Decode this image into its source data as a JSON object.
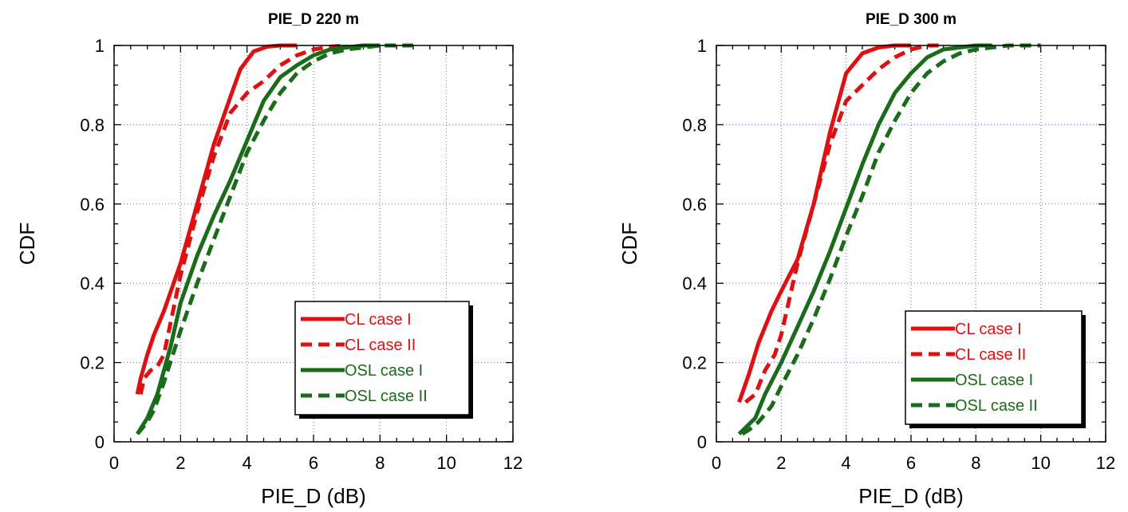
{
  "colors": {
    "red": "#dd1111",
    "green": "#1a6b1a",
    "grid": "#6666cc"
  },
  "chart_data": [
    {
      "type": "line",
      "title": "PIE_D 220 m",
      "xlabel": "PIE_D (dB)",
      "ylabel": "CDF",
      "xlim": [
        0,
        12
      ],
      "ylim": [
        0,
        1
      ],
      "xticks": [
        "0",
        "2",
        "4",
        "6",
        "8",
        "10",
        "12"
      ],
      "yticks": [
        "0",
        "0.2",
        "0.4",
        "0.6",
        "0.8",
        "1"
      ],
      "grid": true,
      "legend_position": "lower-right",
      "series": [
        {
          "name": "CL case I",
          "color": "#dd1111",
          "dash": "solid",
          "x": [
            0.7,
            0.8,
            1.0,
            1.2,
            1.5,
            2.0,
            2.5,
            3.0,
            3.5,
            3.8,
            4.2,
            4.6,
            5.0,
            5.5
          ],
          "y": [
            0.12,
            0.16,
            0.22,
            0.27,
            0.33,
            0.45,
            0.6,
            0.75,
            0.87,
            0.94,
            0.985,
            0.997,
            1.0,
            1.0
          ]
        },
        {
          "name": "CL case II",
          "color": "#dd1111",
          "dash": "dashed",
          "x": [
            0.8,
            0.9,
            1.1,
            1.3,
            1.5,
            1.7,
            2.0,
            2.5,
            3.0,
            3.5,
            4.0,
            4.5,
            5.0,
            5.5,
            6.0,
            6.5,
            7.0
          ],
          "y": [
            0.12,
            0.16,
            0.18,
            0.19,
            0.22,
            0.3,
            0.42,
            0.58,
            0.72,
            0.83,
            0.88,
            0.91,
            0.95,
            0.975,
            0.99,
            0.997,
            1.0
          ]
        },
        {
          "name": "OSL case I",
          "color": "#1a6b1a",
          "dash": "solid",
          "x": [
            0.7,
            1.0,
            1.3,
            1.7,
            2.0,
            2.5,
            3.0,
            3.5,
            4.0,
            4.5,
            5.0,
            5.5,
            6.0,
            6.5,
            7.0,
            7.5,
            8.0
          ],
          "y": [
            0.02,
            0.06,
            0.12,
            0.24,
            0.35,
            0.47,
            0.57,
            0.66,
            0.76,
            0.86,
            0.92,
            0.95,
            0.975,
            0.99,
            0.995,
            1.0,
            1.0
          ]
        },
        {
          "name": "OSL case II",
          "color": "#1a6b1a",
          "dash": "dashed",
          "x": [
            0.7,
            1.0,
            1.2,
            1.5,
            2.0,
            2.5,
            3.0,
            3.5,
            4.0,
            4.5,
            5.0,
            5.5,
            6.0,
            6.5,
            7.0,
            7.5,
            8.0,
            9.0
          ],
          "y": [
            0.02,
            0.05,
            0.08,
            0.15,
            0.28,
            0.4,
            0.51,
            0.62,
            0.73,
            0.81,
            0.88,
            0.93,
            0.96,
            0.98,
            0.99,
            0.995,
            1.0,
            1.0
          ]
        }
      ]
    },
    {
      "type": "line",
      "title": "PIE_D 300 m",
      "xlabel": "PIE_D (dB)",
      "ylabel": "CDF",
      "xlim": [
        0,
        12
      ],
      "ylim": [
        0,
        1
      ],
      "xticks": [
        "0",
        "2",
        "4",
        "6",
        "8",
        "10",
        "12"
      ],
      "yticks": [
        "0",
        "0.2",
        "0.4",
        "0.6",
        "0.8",
        "1"
      ],
      "grid": true,
      "legend_position": "lower-right",
      "series": [
        {
          "name": "CL case I",
          "color": "#dd1111",
          "dash": "solid",
          "x": [
            0.7,
            1.0,
            1.3,
            1.7,
            2.0,
            2.5,
            3.0,
            3.5,
            4.0,
            4.5,
            5.0,
            5.5,
            6.0
          ],
          "y": [
            0.1,
            0.17,
            0.25,
            0.33,
            0.38,
            0.46,
            0.6,
            0.78,
            0.93,
            0.98,
            0.995,
            1.0,
            1.0
          ]
        },
        {
          "name": "CL case II",
          "color": "#dd1111",
          "dash": "dashed",
          "x": [
            0.9,
            1.2,
            1.5,
            1.8,
            2.0,
            2.5,
            3.0,
            3.5,
            4.0,
            4.5,
            5.0,
            5.5,
            6.0,
            6.5,
            7.0
          ],
          "y": [
            0.1,
            0.12,
            0.18,
            0.22,
            0.27,
            0.45,
            0.6,
            0.75,
            0.86,
            0.9,
            0.94,
            0.97,
            0.99,
            1.0,
            1.0
          ]
        },
        {
          "name": "OSL case I",
          "color": "#1a6b1a",
          "dash": "solid",
          "x": [
            0.7,
            1.2,
            1.5,
            2.0,
            2.5,
            3.0,
            3.5,
            4.0,
            4.5,
            5.0,
            5.5,
            6.0,
            6.5,
            7.0,
            7.5,
            8.0,
            8.5
          ],
          "y": [
            0.02,
            0.06,
            0.12,
            0.2,
            0.29,
            0.38,
            0.48,
            0.59,
            0.7,
            0.8,
            0.88,
            0.93,
            0.97,
            0.99,
            0.995,
            1.0,
            1.0
          ]
        },
        {
          "name": "OSL case II",
          "color": "#1a6b1a",
          "dash": "dashed",
          "x": [
            0.8,
            1.0,
            1.3,
            1.7,
            2.0,
            2.5,
            3.0,
            3.5,
            4.0,
            4.5,
            5.0,
            5.5,
            6.0,
            6.5,
            7.0,
            7.5,
            8.0,
            9.0,
            10.0
          ],
          "y": [
            0.02,
            0.03,
            0.05,
            0.09,
            0.14,
            0.22,
            0.31,
            0.41,
            0.52,
            0.62,
            0.73,
            0.81,
            0.88,
            0.93,
            0.96,
            0.98,
            0.99,
            1.0,
            1.0
          ]
        }
      ]
    }
  ]
}
